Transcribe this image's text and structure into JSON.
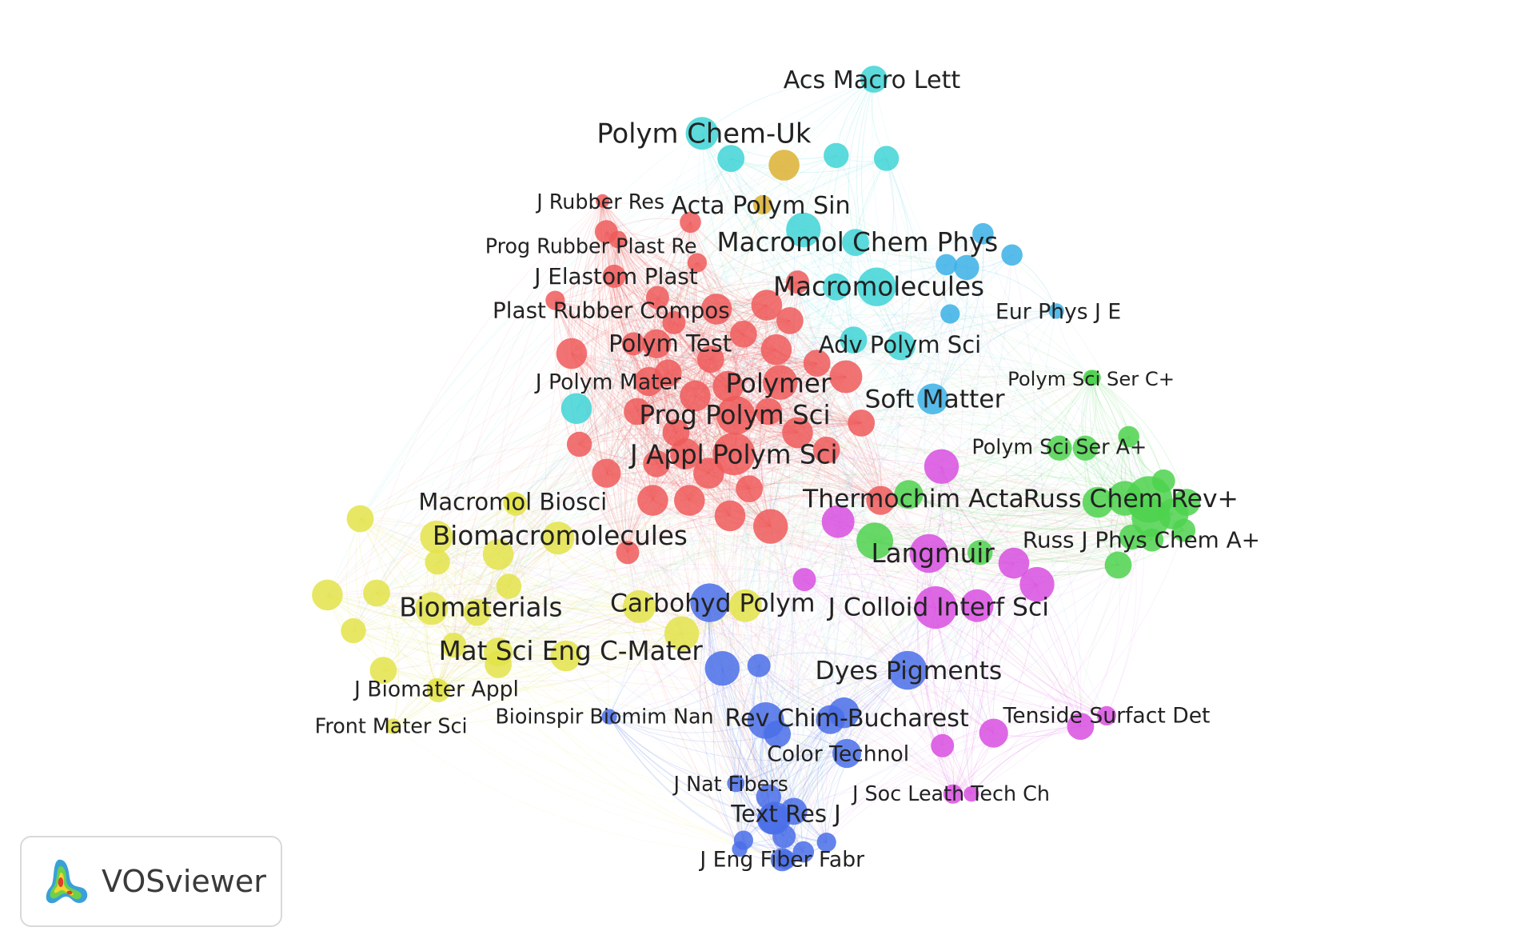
{
  "app": {
    "name": "VOSviewer"
  },
  "clusters": [
    {
      "id": "red",
      "color": "#ee5a5a"
    },
    {
      "id": "cyan",
      "color": "#3fd3d6"
    },
    {
      "id": "lightblue",
      "color": "#3bb0e6"
    },
    {
      "id": "green",
      "color": "#4ed24e"
    },
    {
      "id": "yellow",
      "color": "#e3e34a"
    },
    {
      "id": "purple",
      "color": "#d84fe0"
    },
    {
      "id": "blue",
      "color": "#4a6fe8"
    },
    {
      "id": "orange",
      "color": "#dcb033"
    }
  ],
  "labels": [
    {
      "id": "acs-macro-lett",
      "text": "Acs Macro Lett",
      "cluster": "cyan"
    },
    {
      "id": "polym-chem-uk",
      "text": "Polym Chem-Uk",
      "cluster": "cyan"
    },
    {
      "id": "j-rubber-res",
      "text": "J Rubber Res",
      "cluster": "red"
    },
    {
      "id": "acta-polym-sin",
      "text": "Acta Polym Sin",
      "cluster": "orange"
    },
    {
      "id": "prog-rubber-plast-re",
      "text": "Prog Rubber Plast Re",
      "cluster": "red"
    },
    {
      "id": "macromol-chem-phys",
      "text": "Macromol Chem Phys",
      "cluster": "cyan"
    },
    {
      "id": "j-elastom-plast",
      "text": "J Elastom Plast",
      "cluster": "red"
    },
    {
      "id": "macromolecules",
      "text": "Macromolecules",
      "cluster": "cyan"
    },
    {
      "id": "plast-rubber-compos",
      "text": "Plast Rubber Compos",
      "cluster": "red"
    },
    {
      "id": "eur-phys-j-e",
      "text": "Eur Phys J E",
      "cluster": "lightblue"
    },
    {
      "id": "polym-test",
      "text": "Polym Test",
      "cluster": "red"
    },
    {
      "id": "adv-polym-sci",
      "text": "Adv Polym Sci",
      "cluster": "cyan"
    },
    {
      "id": "polym-sci-ser-c",
      "text": "Polym Sci Ser C+",
      "cluster": "green"
    },
    {
      "id": "j-polym-mater",
      "text": "J Polym Mater",
      "cluster": "red"
    },
    {
      "id": "polymer",
      "text": "Polymer",
      "cluster": "red"
    },
    {
      "id": "soft-matter",
      "text": "Soft Matter",
      "cluster": "lightblue"
    },
    {
      "id": "prog-polym-sci",
      "text": "Prog Polym Sci",
      "cluster": "red"
    },
    {
      "id": "polym-sci-ser-a",
      "text": "Polym Sci Ser A+",
      "cluster": "green"
    },
    {
      "id": "j-appl-polym-sci",
      "text": "J Appl Polym Sci",
      "cluster": "red"
    },
    {
      "id": "macromol-biosci",
      "text": "Macromol Biosci",
      "cluster": "yellow"
    },
    {
      "id": "thermochim-acta",
      "text": "Thermochim Acta",
      "cluster": "red"
    },
    {
      "id": "russ-chem-rev",
      "text": "Russ Chem Rev+",
      "cluster": "green"
    },
    {
      "id": "biomacromolecules",
      "text": "Biomacromolecules",
      "cluster": "yellow"
    },
    {
      "id": "russ-j-phys-chem-a",
      "text": "Russ J Phys Chem A+",
      "cluster": "green"
    },
    {
      "id": "langmuir",
      "text": "Langmuir",
      "cluster": "purple"
    },
    {
      "id": "biomaterials",
      "text": "Biomaterials",
      "cluster": "yellow"
    },
    {
      "id": "carbohyd-polym",
      "text": "Carbohyd Polym",
      "cluster": "blue"
    },
    {
      "id": "j-colloid-interf-sci",
      "text": "J Colloid Interf Sci",
      "cluster": "purple"
    },
    {
      "id": "mat-sci-eng-c-mater",
      "text": "Mat Sci Eng C-Mater",
      "cluster": "yellow"
    },
    {
      "id": "dyes-pigments",
      "text": "Dyes Pigments",
      "cluster": "blue"
    },
    {
      "id": "j-biomater-appl",
      "text": "J Biomater Appl",
      "cluster": "yellow"
    },
    {
      "id": "tenside-surfact-det",
      "text": "Tenside Surfact Det",
      "cluster": "purple"
    },
    {
      "id": "front-mater-sci",
      "text": "Front Mater Sci",
      "cluster": "yellow"
    },
    {
      "id": "bioinspir-biomim-nan",
      "text": "Bioinspir Biomim Nan",
      "cluster": "blue"
    },
    {
      "id": "rev-chim-bucharest",
      "text": "Rev Chim-Bucharest",
      "cluster": "blue"
    },
    {
      "id": "color-technol",
      "text": "Color Technol",
      "cluster": "blue"
    },
    {
      "id": "j-nat-fibers",
      "text": "J Nat Fibers",
      "cluster": "blue"
    },
    {
      "id": "j-soc-leath-tech-ch",
      "text": "J Soc Leath Tech Ch",
      "cluster": "purple"
    },
    {
      "id": "text-res-j",
      "text": "Text Res J",
      "cluster": "blue"
    },
    {
      "id": "j-eng-fiber-fabr",
      "text": "J Eng Fiber Fabr",
      "cluster": "blue"
    }
  ]
}
